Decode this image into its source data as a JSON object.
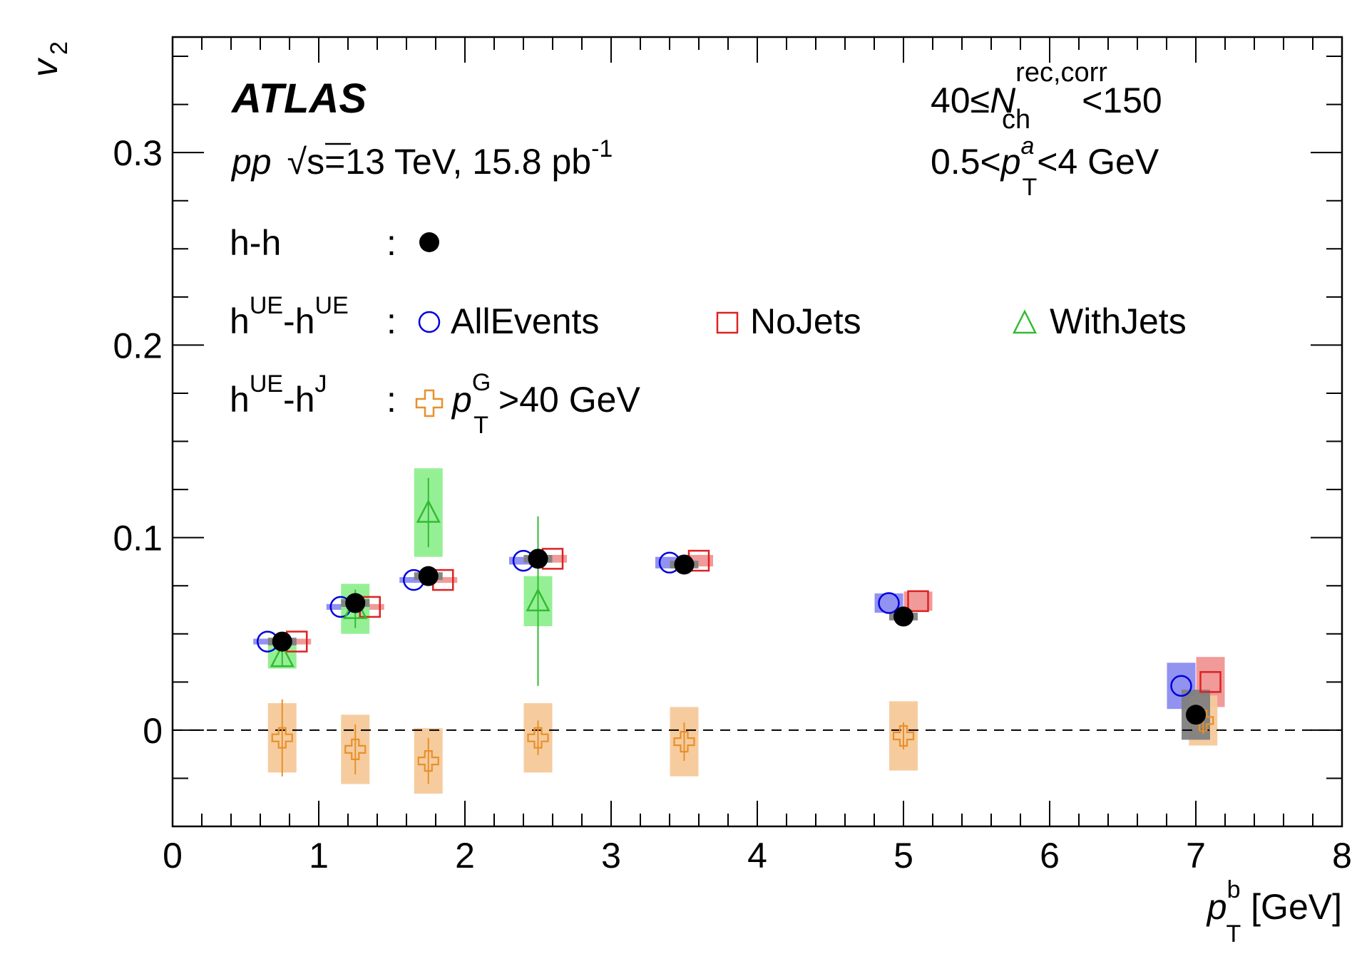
{
  "chart_data": {
    "type": "scatter",
    "experiment": "ATLAS",
    "collision_line": {
      "system": "pp",
      "sqrt_s": "√s",
      "energy": "=13 TeV, 15.8 pb",
      "lumi_exp": "-1"
    },
    "selection_line1": {
      "prefix": "40≤",
      "var": "N",
      "sub": "ch",
      "sup": "rec,corr",
      "suffix": "<150"
    },
    "selection_line2": {
      "prefix": "0.5<",
      "var": "p",
      "sup": "a",
      "sub": "T",
      "suffix": "<4 GeV"
    },
    "xlabel": {
      "var": "p",
      "sup": "b",
      "sub": "T",
      "unit": " [GeV]"
    },
    "ylabel": {
      "var": "v",
      "sub": "2"
    },
    "xlim": [
      0,
      8
    ],
    "ylim": [
      -0.05,
      0.36
    ],
    "x_ticks": [
      "0",
      "1",
      "2",
      "3",
      "4",
      "5",
      "6",
      "7",
      "8"
    ],
    "y_ticks": [
      "0",
      "0.1",
      "0.2",
      "0.3"
    ],
    "x_tick_values": [
      0,
      1,
      2,
      3,
      4,
      5,
      6,
      7,
      8
    ],
    "y_tick_values": [
      0,
      0.1,
      0.2,
      0.3
    ],
    "reference_line_y": 0,
    "legend": {
      "hh": {
        "a": "h-h",
        "colon": ":"
      },
      "ue": {
        "a": "h",
        "a_sup": "UE",
        "b": "-h",
        "b_sup": "UE",
        "colon": ":"
      },
      "uej": {
        "a": "h",
        "a_sup": "UE",
        "b": "-h",
        "b_sup": "J",
        "colon": ":"
      },
      "alljets_label": "AllEvents",
      "nojets_label": "NoJets",
      "withjets_label": "WithJets",
      "ptg": {
        "var": "p",
        "sup": "G",
        "sub": "T",
        "suffix": ">40 GeV"
      }
    },
    "series": [
      {
        "name": "h-h",
        "marker": "filled-circle",
        "color": "#000000",
        "box_color": "#7f7f7f",
        "x": [
          0.75,
          1.25,
          1.75,
          2.5,
          3.5,
          5.0,
          7.0
        ],
        "y": [
          0.046,
          0.066,
          0.08,
          0.089,
          0.086,
          0.059,
          0.008
        ],
        "stat_err": [
          0.002,
          0.002,
          0.002,
          0.002,
          0.002,
          0.003,
          0.005
        ],
        "syst_err": [
          0.002,
          0.002,
          0.002,
          0.002,
          0.002,
          0.002,
          0.013
        ]
      },
      {
        "name": "AllEvents",
        "marker": "open-circle",
        "color": "#0000dd",
        "box_color": "#8c8cf0",
        "x": [
          0.65,
          1.15,
          1.65,
          2.4,
          3.4,
          4.9,
          6.9
        ],
        "y": [
          0.046,
          0.064,
          0.078,
          0.088,
          0.087,
          0.066,
          0.023
        ],
        "stat_err": [
          0.0,
          0.0,
          0.0,
          0.0,
          0.0,
          0.0,
          0.0
        ],
        "syst_err": [
          0.0015,
          0.0015,
          0.0015,
          0.002,
          0.003,
          0.005,
          0.012
        ]
      },
      {
        "name": "NoJets",
        "marker": "open-square",
        "color": "#dd2222",
        "box_color": "#f09595",
        "x": [
          0.85,
          1.35,
          1.85,
          2.6,
          3.6,
          5.1,
          7.1
        ],
        "y": [
          0.046,
          0.064,
          0.078,
          0.089,
          0.088,
          0.067,
          0.025
        ],
        "stat_err": [
          0.0,
          0.0,
          0.0,
          0.0,
          0.0,
          0.0,
          0.0
        ],
        "syst_err": [
          0.0015,
          0.0015,
          0.0015,
          0.002,
          0.003,
          0.005,
          0.013
        ]
      },
      {
        "name": "WithJets",
        "marker": "open-triangle",
        "color": "#33bb33",
        "box_color": "#8fef8f",
        "x": [
          0.75,
          1.25,
          1.75,
          2.5
        ],
        "y": [
          0.038,
          0.063,
          0.113,
          0.067
        ],
        "stat_err": [
          0.005,
          0.01,
          0.018,
          0.044
        ],
        "syst_err": [
          0.006,
          0.013,
          0.023,
          0.013
        ]
      },
      {
        "name": "pTG>40 GeV",
        "marker": "open-cross",
        "color": "#e8902a",
        "box_color": "#f5c99a",
        "x": [
          0.75,
          1.25,
          1.75,
          2.5,
          3.5,
          5.0,
          7.05
        ],
        "y": [
          -0.004,
          -0.01,
          -0.016,
          -0.004,
          -0.006,
          -0.003,
          0.005
        ],
        "stat_err": [
          0.02,
          0.013,
          0.012,
          0.009,
          0.01,
          0.007,
          0.007
        ],
        "syst_err": [
          0.018,
          0.018,
          0.017,
          0.018,
          0.018,
          0.018,
          0.013
        ]
      }
    ]
  }
}
